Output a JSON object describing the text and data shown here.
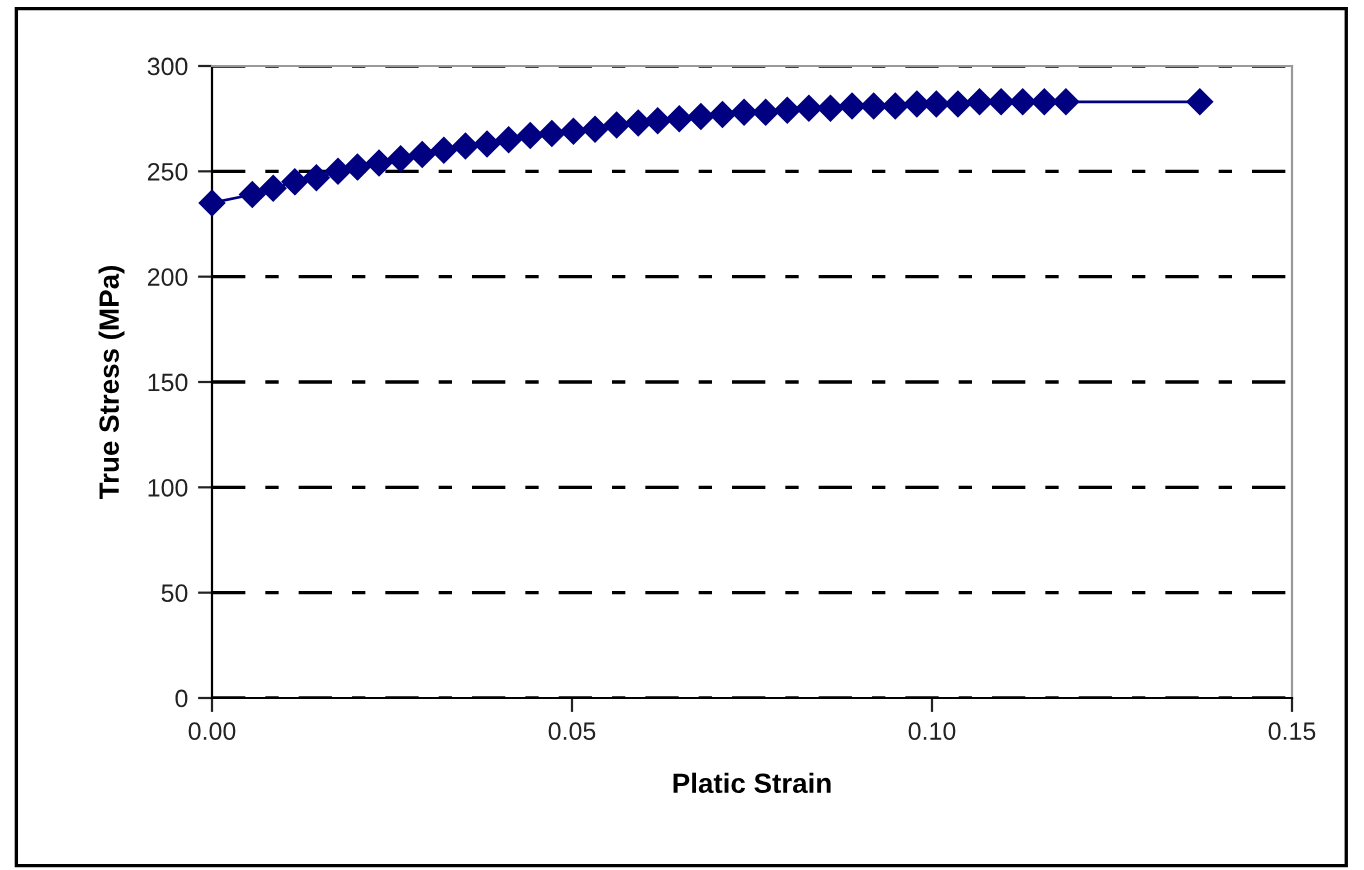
{
  "chart_data": {
    "type": "line",
    "xlabel": "Platic Strain",
    "ylabel": "True Stress (MPa)",
    "x": [
      0,
      0.0056,
      0.0085,
      0.0115,
      0.0145,
      0.0175,
      0.0202,
      0.0232,
      0.0262,
      0.0292,
      0.0322,
      0.0352,
      0.0382,
      0.0412,
      0.0442,
      0.0472,
      0.0502,
      0.0532,
      0.0562,
      0.0592,
      0.0619,
      0.0649,
      0.0679,
      0.0709,
      0.0739,
      0.0769,
      0.0799,
      0.0829,
      0.0859,
      0.0889,
      0.0919,
      0.0949,
      0.0979,
      0.1006,
      0.1036,
      0.1066,
      0.1096,
      0.1126,
      0.1156,
      0.1186,
      0.1372
    ],
    "series": [
      {
        "color": "#000080",
        "values": [
          235,
          239,
          242,
          245,
          247,
          250,
          252,
          254,
          256,
          258,
          260,
          262,
          263,
          265,
          267,
          268,
          269,
          270,
          272,
          273,
          274,
          275,
          276,
          277,
          278,
          278,
          279,
          280,
          280,
          281,
          281,
          281,
          282,
          282,
          282,
          283,
          283,
          283,
          283,
          283,
          283
        ]
      }
    ],
    "xlim": [
      0,
      0.15
    ],
    "xticks": [
      {
        "value": 0,
        "label": "0.00"
      },
      {
        "value": 0.05,
        "label": "0.05"
      },
      {
        "value": 0.1,
        "label": "0.10"
      },
      {
        "value": 0.15,
        "label": "0.15"
      }
    ],
    "ylim": [
      0,
      300
    ],
    "yticks": [
      0,
      50,
      100,
      150,
      200,
      250,
      300
    ],
    "grid": "y",
    "marker": "diamond",
    "line_style": "solid"
  }
}
